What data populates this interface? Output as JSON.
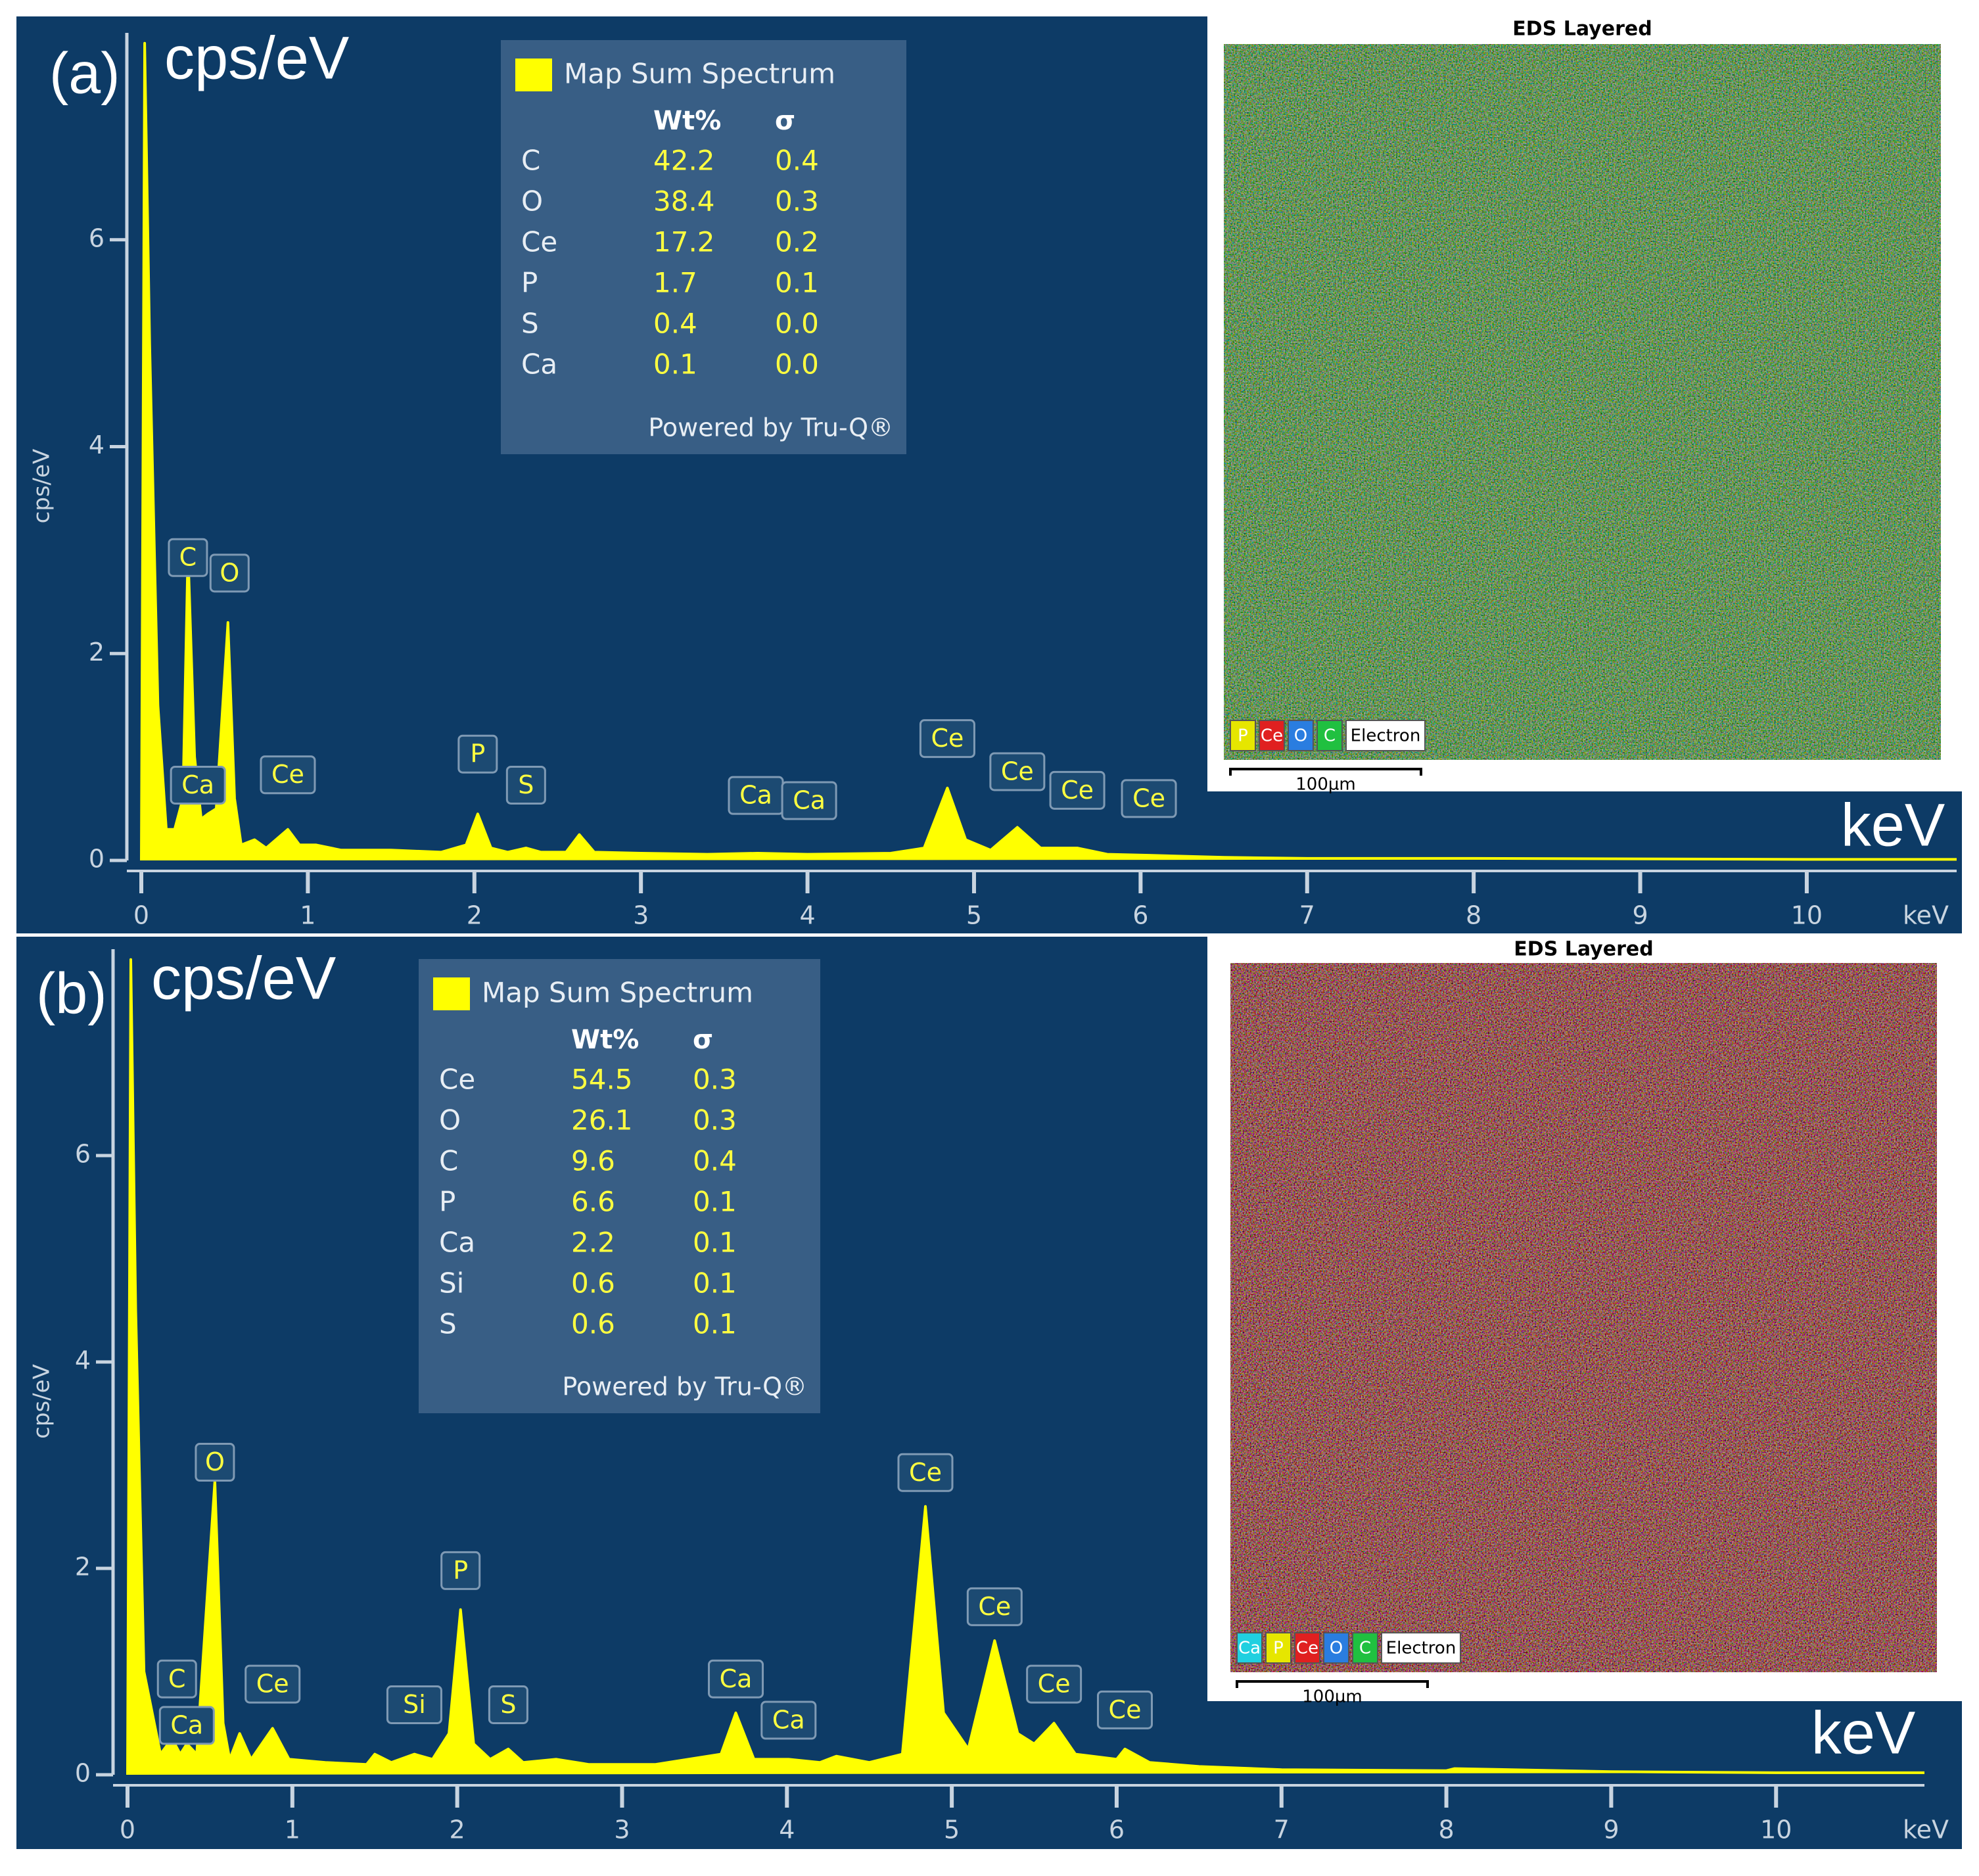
{
  "chart_data": [
    {
      "type": "area",
      "panel_label": "(a)",
      "y_title": "cps/eV",
      "y_axis_label": "cps/eV",
      "x_title": "keV",
      "x_axis_label": "keV",
      "color": "#ffff00",
      "xlim": [
        0,
        10.9
      ],
      "ylim": [
        0,
        8
      ],
      "xticks": [
        0,
        1,
        2,
        3,
        4,
        5,
        6,
        7,
        8,
        9,
        10
      ],
      "yticks": [
        0,
        2,
        4,
        6
      ],
      "x": [
        0,
        0.02,
        0.05,
        0.1,
        0.15,
        0.2,
        0.25,
        0.28,
        0.32,
        0.36,
        0.4,
        0.45,
        0.52,
        0.56,
        0.6,
        0.68,
        0.75,
        0.88,
        0.95,
        1.05,
        1.2,
        1.5,
        1.8,
        1.95,
        2.02,
        2.1,
        2.2,
        2.31,
        2.4,
        2.55,
        2.63,
        2.72,
        3.0,
        3.4,
        3.7,
        4.0,
        4.5,
        4.7,
        4.84,
        4.95,
        5.1,
        5.26,
        5.4,
        5.62,
        5.8,
        6.05,
        6.5,
        7,
        8,
        9,
        10,
        10.9
      ],
      "values": [
        0,
        7.9,
        5,
        1.5,
        0.3,
        0.3,
        0.6,
        3.0,
        1.0,
        0.4,
        0.45,
        0.5,
        2.3,
        0.6,
        0.15,
        0.2,
        0.12,
        0.3,
        0.15,
        0.15,
        0.1,
        0.1,
        0.08,
        0.15,
        0.45,
        0.12,
        0.08,
        0.12,
        0.08,
        0.08,
        0.25,
        0.08,
        0.07,
        0.06,
        0.07,
        0.06,
        0.07,
        0.12,
        0.7,
        0.2,
        0.1,
        0.32,
        0.12,
        0.12,
        0.06,
        0.05,
        0.03,
        0.02,
        0.02,
        0.015,
        0.01,
        0.01
      ],
      "annotations": [
        {
          "text": "C",
          "x": 0.28,
          "y": 2.75
        },
        {
          "text": "Ca",
          "x": 0.34,
          "y": 0.55
        },
        {
          "text": "O",
          "x": 0.53,
          "y": 2.6
        },
        {
          "text": "Ce",
          "x": 0.88,
          "y": 0.65
        },
        {
          "text": "P",
          "x": 2.02,
          "y": 0.85
        },
        {
          "text": "S",
          "x": 2.31,
          "y": 0.55
        },
        {
          "text": "Ca",
          "x": 3.69,
          "y": 0.45
        },
        {
          "text": "Ca",
          "x": 4.01,
          "y": 0.4
        },
        {
          "text": "Ce",
          "x": 4.84,
          "y": 1.0
        },
        {
          "text": "Ce",
          "x": 5.26,
          "y": 0.68
        },
        {
          "text": "Ce",
          "x": 5.62,
          "y": 0.5
        },
        {
          "text": "Ce",
          "x": 6.05,
          "y": 0.42
        }
      ],
      "table": {
        "title": "Map Sum Spectrum",
        "header": [
          "Wt%",
          "σ"
        ],
        "rows": [
          [
            "C",
            "42.2",
            "0.4"
          ],
          [
            "O",
            "38.4",
            "0.3"
          ],
          [
            "Ce",
            "17.2",
            "0.2"
          ],
          [
            "P",
            "1.7",
            "0.1"
          ],
          [
            "S",
            "0.4",
            "0.0"
          ],
          [
            "Ca",
            "0.1",
            "0.0"
          ]
        ],
        "footer": "Powered by Tru-Q®"
      },
      "map": {
        "title": "EDS Layered",
        "scale": "100µm",
        "legend": [
          {
            "name": "P",
            "color": "#e6e600"
          },
          {
            "name": "Ce",
            "color": "#e02020"
          },
          {
            "name": "O",
            "color": "#2a7de0"
          },
          {
            "name": "C",
            "color": "#20c040"
          },
          {
            "name": "Electron",
            "color": "#ffffff"
          }
        ]
      }
    },
    {
      "type": "area",
      "panel_label": "(b)",
      "y_title": "cps/eV",
      "y_axis_label": "cps/eV",
      "x_title": "keV",
      "x_axis_label": "keV",
      "color": "#ffff00",
      "xlim": [
        0,
        10.9
      ],
      "ylim": [
        0,
        8
      ],
      "xticks": [
        0,
        1,
        2,
        3,
        4,
        5,
        6,
        7,
        8,
        9,
        10
      ],
      "yticks": [
        0,
        2,
        4,
        6
      ],
      "x": [
        0,
        0.02,
        0.05,
        0.1,
        0.2,
        0.27,
        0.32,
        0.36,
        0.42,
        0.53,
        0.58,
        0.62,
        0.68,
        0.75,
        0.88,
        0.98,
        1.2,
        1.45,
        1.5,
        1.6,
        1.74,
        1.85,
        1.95,
        2.02,
        2.1,
        2.2,
        2.31,
        2.4,
        2.6,
        2.8,
        3.2,
        3.6,
        3.69,
        3.8,
        4.01,
        4.2,
        4.3,
        4.5,
        4.7,
        4.84,
        4.95,
        5.1,
        5.26,
        5.4,
        5.5,
        5.62,
        5.75,
        6.0,
        6.05,
        6.2,
        6.5,
        7,
        8,
        8.05,
        9,
        10,
        10.9
      ],
      "values": [
        0,
        7.9,
        4.5,
        1.0,
        0.2,
        0.35,
        0.2,
        0.3,
        0.2,
        2.85,
        0.5,
        0.15,
        0.4,
        0.15,
        0.45,
        0.15,
        0.12,
        0.1,
        0.2,
        0.12,
        0.2,
        0.15,
        0.4,
        1.6,
        0.3,
        0.15,
        0.25,
        0.12,
        0.15,
        0.1,
        0.1,
        0.2,
        0.6,
        0.15,
        0.15,
        0.12,
        0.18,
        0.12,
        0.2,
        2.6,
        0.6,
        0.25,
        1.3,
        0.4,
        0.3,
        0.5,
        0.2,
        0.15,
        0.25,
        0.12,
        0.08,
        0.05,
        0.04,
        0.06,
        0.03,
        0.02,
        0.02
      ],
      "annotations": [
        {
          "text": "C",
          "x": 0.3,
          "y": 0.75
        },
        {
          "text": "Ca",
          "x": 0.36,
          "y": 0.3
        },
        {
          "text": "O",
          "x": 0.53,
          "y": 2.85
        },
        {
          "text": "Ce",
          "x": 0.88,
          "y": 0.7
        },
        {
          "text": "Si",
          "x": 1.74,
          "y": 0.5
        },
        {
          "text": "P",
          "x": 2.02,
          "y": 1.8
        },
        {
          "text": "S",
          "x": 2.31,
          "y": 0.5
        },
        {
          "text": "Ca",
          "x": 3.69,
          "y": 0.75
        },
        {
          "text": "Ca",
          "x": 4.01,
          "y": 0.35
        },
        {
          "text": "Ce",
          "x": 4.84,
          "y": 2.75
        },
        {
          "text": "Ce",
          "x": 5.26,
          "y": 1.45
        },
        {
          "text": "Ce",
          "x": 5.62,
          "y": 0.7
        },
        {
          "text": "Ce",
          "x": 6.05,
          "y": 0.45
        }
      ],
      "table": {
        "title": "Map Sum Spectrum",
        "header": [
          "Wt%",
          "σ"
        ],
        "rows": [
          [
            "Ce",
            "54.5",
            "0.3"
          ],
          [
            "O",
            "26.1",
            "0.3"
          ],
          [
            "C",
            "9.6",
            "0.4"
          ],
          [
            "P",
            "6.6",
            "0.1"
          ],
          [
            "Ca",
            "2.2",
            "0.1"
          ],
          [
            "Si",
            "0.6",
            "0.1"
          ],
          [
            "S",
            "0.6",
            "0.1"
          ]
        ],
        "footer": "Powered by Tru-Q®"
      },
      "map": {
        "title": "EDS Layered",
        "scale": "100µm",
        "legend": [
          {
            "name": "Ca",
            "color": "#20d0e0"
          },
          {
            "name": "P",
            "color": "#e6e600"
          },
          {
            "name": "Ce",
            "color": "#e02020"
          },
          {
            "name": "O",
            "color": "#2a7de0"
          },
          {
            "name": "C",
            "color": "#20c040"
          },
          {
            "name": "Electron",
            "color": "#ffffff"
          }
        ]
      }
    }
  ]
}
